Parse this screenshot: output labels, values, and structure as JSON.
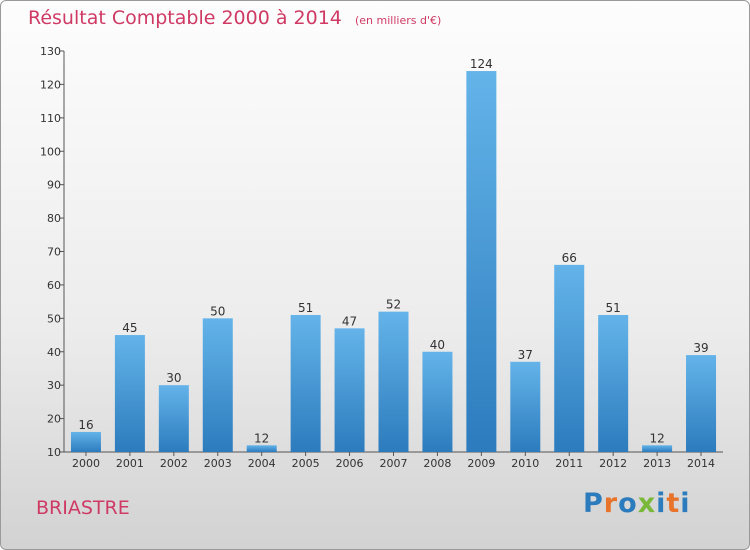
{
  "header": {
    "title": "Résultat Comptable 2000 à 2014",
    "subtitle": "(en milliers d'€)"
  },
  "footer": {
    "commune": "BRIASTRE",
    "logo": "Proxiti"
  },
  "colors": {
    "title": "#cf3a64",
    "bar_top": "#64b4ea",
    "bar_bottom": "#2c7bbd",
    "axis": "#555555",
    "logo_letters": [
      "#2c7bbd",
      "#e8732a",
      "#2c7bbd",
      "#7ab83a",
      "#2c7bbd",
      "#e8732a",
      "#2c7bbd"
    ]
  },
  "chart_data": {
    "type": "bar",
    "title": "Résultat Comptable 2000 à 2014",
    "categories": [
      "2000",
      "2001",
      "2002",
      "2003",
      "2004",
      "2005",
      "2006",
      "2007",
      "2008",
      "2009",
      "2010",
      "2011",
      "2012",
      "2013",
      "2014"
    ],
    "values": [
      16,
      45,
      30,
      50,
      12,
      51,
      47,
      52,
      40,
      124,
      37,
      66,
      51,
      12,
      39
    ],
    "ylim": [
      10,
      130
    ],
    "yticks": [
      10,
      20,
      30,
      40,
      50,
      60,
      70,
      80,
      90,
      100,
      110,
      120,
      130
    ],
    "xlabel": "",
    "ylabel": "",
    "grid": false,
    "legend": "none"
  }
}
